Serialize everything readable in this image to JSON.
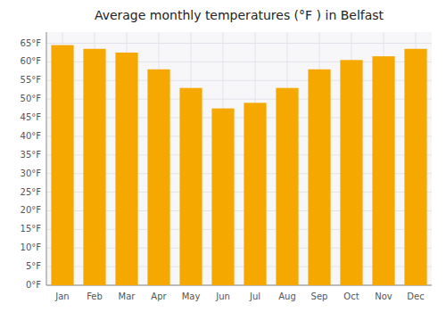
{
  "chart_data": {
    "type": "bar",
    "title": "Average monthly temperatures (°F ) in Belfast",
    "categories": [
      "Jan",
      "Feb",
      "Mar",
      "Apr",
      "May",
      "Jun",
      "Jul",
      "Aug",
      "Sep",
      "Oct",
      "Nov",
      "Dec"
    ],
    "values": [
      64.5,
      63.5,
      62.5,
      58.0,
      53.0,
      47.5,
      49.0,
      53.0,
      58.0,
      60.5,
      61.5,
      63.5
    ],
    "color": "#F5A800",
    "ylim": [
      0,
      68
    ],
    "yticks": [
      {
        "value": 0,
        "label": "0°F"
      },
      {
        "value": 5,
        "label": "5°F"
      },
      {
        "value": 10,
        "label": "10°F"
      },
      {
        "value": 15,
        "label": "15°F"
      },
      {
        "value": 20,
        "label": "20°F"
      },
      {
        "value": 25,
        "label": "25°F"
      },
      {
        "value": 30,
        "label": "30°F"
      },
      {
        "value": 35,
        "label": "35°F"
      },
      {
        "value": 40,
        "label": "40°F"
      },
      {
        "value": 45,
        "label": "45°F"
      },
      {
        "value": 50,
        "label": "50°F"
      },
      {
        "value": 55,
        "label": "55°F"
      },
      {
        "value": 60,
        "label": "60°F"
      },
      {
        "value": 65,
        "label": "65°F"
      }
    ],
    "grid": true
  }
}
